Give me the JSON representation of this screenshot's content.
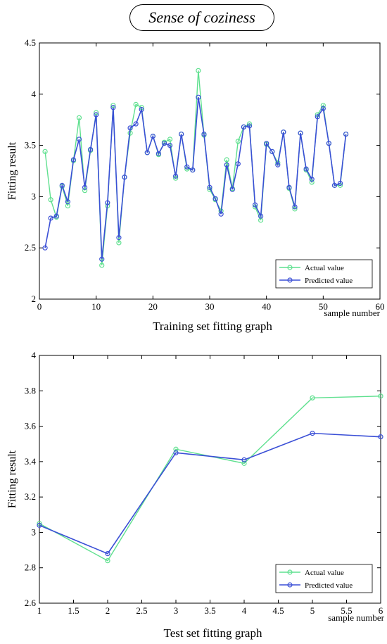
{
  "header": {
    "title": "Sense of coziness"
  },
  "chart_data": [
    {
      "type": "line",
      "caption": "Training set fitting graph",
      "xlabel": "sample number",
      "ylabel": "Fitting result",
      "xlim": [
        0,
        60
      ],
      "ylim": [
        2,
        4.5
      ],
      "xticks": [
        0,
        10,
        20,
        30,
        40,
        50,
        60
      ],
      "yticks": [
        2,
        2.5,
        3,
        3.5,
        4,
        4.5
      ],
      "legend_position": "bottom-right",
      "x": [
        1,
        2,
        3,
        4,
        5,
        6,
        7,
        8,
        9,
        10,
        11,
        12,
        13,
        14,
        15,
        16,
        17,
        18,
        19,
        20,
        21,
        22,
        23,
        24,
        25,
        26,
        27,
        28,
        29,
        30,
        31,
        32,
        33,
        34,
        35,
        36,
        37,
        38,
        39,
        40,
        41,
        42,
        43,
        44,
        45,
        46,
        47,
        48,
        49,
        50,
        51,
        52,
        53,
        54
      ],
      "series": [
        {
          "name": "Actual value",
          "color": "#5fe08f",
          "values": [
            3.44,
            2.97,
            2.8,
            3.1,
            2.91,
            3.35,
            3.77,
            3.06,
            3.45,
            3.82,
            2.33,
            2.91,
            3.89,
            2.55,
            3.19,
            3.62,
            3.9,
            3.87,
            3.43,
            3.59,
            3.41,
            3.53,
            3.56,
            3.18,
            3.61,
            3.27,
            3.26,
            4.23,
            3.6,
            3.07,
            2.97,
            2.86,
            3.36,
            3.08,
            3.54,
            3.68,
            3.71,
            2.9,
            2.77,
            3.51,
            3.44,
            3.33,
            3.63,
            3.08,
            2.88,
            3.62,
            3.26,
            3.14,
            3.8,
            3.89,
            3.52,
            3.11,
            3.11,
            3.61
          ]
        },
        {
          "name": "Predicted value",
          "color": "#3a4fd6",
          "values": [
            2.5,
            2.79,
            2.81,
            3.11,
            2.95,
            3.36,
            3.56,
            3.09,
            3.46,
            3.8,
            2.39,
            2.94,
            3.87,
            2.6,
            3.19,
            3.67,
            3.71,
            3.85,
            3.43,
            3.59,
            3.42,
            3.52,
            3.5,
            3.2,
            3.61,
            3.29,
            3.26,
            3.97,
            3.61,
            3.09,
            2.98,
            2.83,
            3.31,
            3.07,
            3.32,
            3.68,
            3.69,
            2.92,
            2.81,
            3.52,
            3.44,
            3.31,
            3.63,
            3.09,
            2.9,
            3.62,
            3.27,
            3.17,
            3.78,
            3.86,
            3.52,
            3.11,
            3.13,
            3.61
          ]
        }
      ]
    },
    {
      "type": "line",
      "caption": "Test set fitting graph",
      "xlabel": "sample number",
      "ylabel": "Fitting result",
      "xlim": [
        1,
        6
      ],
      "ylim": [
        2.6,
        4
      ],
      "xticks": [
        1,
        1.5,
        2,
        2.5,
        3,
        3.5,
        4,
        4.5,
        5,
        5.5,
        6
      ],
      "yticks": [
        2.6,
        2.8,
        3,
        3.2,
        3.4,
        3.6,
        3.8,
        4
      ],
      "legend_position": "bottom-right",
      "x": [
        1,
        2,
        3,
        4,
        5,
        6
      ],
      "series": [
        {
          "name": "Actual value",
          "color": "#5fe08f",
          "values": [
            3.05,
            2.84,
            3.47,
            3.39,
            3.76,
            3.77
          ]
        },
        {
          "name": "Predicted value",
          "color": "#3a4fd6",
          "values": [
            3.04,
            2.88,
            3.45,
            3.41,
            3.56,
            3.54
          ]
        }
      ]
    }
  ]
}
